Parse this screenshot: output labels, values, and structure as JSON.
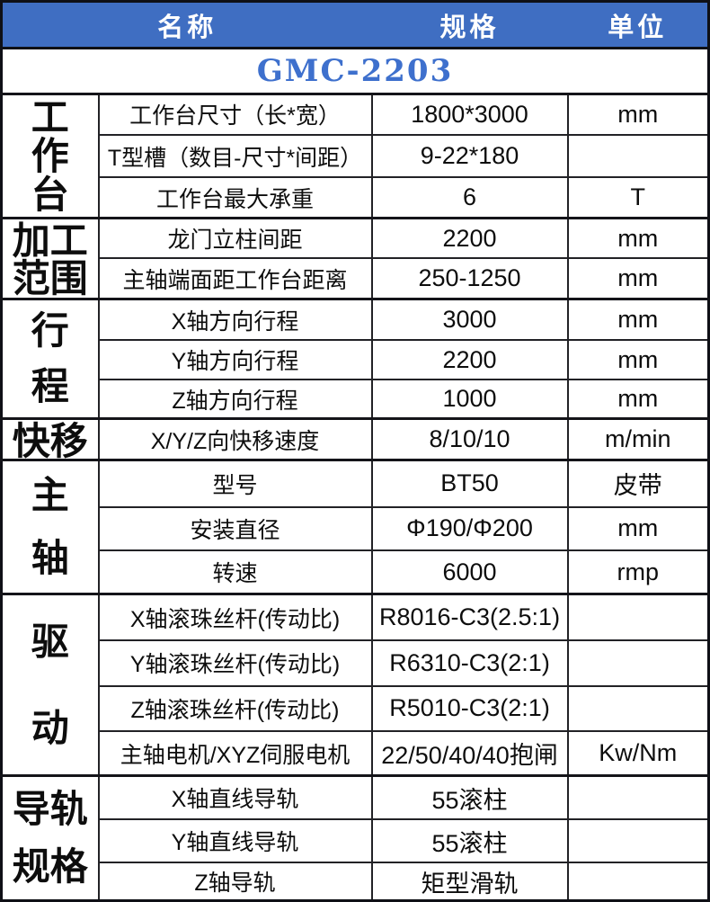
{
  "header": {
    "col_name": "名称",
    "col_spec": "规格",
    "col_unit": "单位"
  },
  "model_title": "GMC-2203",
  "colors": {
    "header_bg": "#3f6ec2",
    "header_text": "#ffffff",
    "title_text": "#3e70cd",
    "border_dark": "#141419",
    "body_text": "#0d0d0d"
  },
  "groups": [
    {
      "id": "worktable",
      "label": "工作台",
      "label_lines": [
        "工",
        "作",
        "台"
      ],
      "rows": [
        {
          "name": "工作台尺寸（长*宽）",
          "spec": "1800*3000",
          "unit": "mm"
        },
        {
          "name": "T型槽（数目-尺寸*间距）",
          "spec": "9-22*180",
          "unit": ""
        },
        {
          "name": "工作台最大承重",
          "spec": "6",
          "unit": "T"
        }
      ]
    },
    {
      "id": "machining-range",
      "label": "加工范围",
      "label_lines": [
        "加工",
        "范围"
      ],
      "rows": [
        {
          "name": "龙门立柱间距",
          "spec": "2200",
          "unit": "mm"
        },
        {
          "name": "主轴端面距工作台距离",
          "spec": "250-1250",
          "unit": "mm"
        }
      ]
    },
    {
      "id": "travel",
      "label": "行程",
      "label_lines": [
        "行",
        "程"
      ],
      "rows": [
        {
          "name": "X轴方向行程",
          "spec": "3000",
          "unit": "mm"
        },
        {
          "name": "Y轴方向行程",
          "spec": "2200",
          "unit": "mm"
        },
        {
          "name": "Z轴方向行程",
          "spec": "1000",
          "unit": "mm"
        }
      ]
    },
    {
      "id": "rapid-traverse",
      "label": "快移",
      "label_lines": [
        "快移"
      ],
      "rows": [
        {
          "name": "X/Y/Z向快移速度",
          "spec": "8/10/10",
          "unit": "m/min"
        }
      ]
    },
    {
      "id": "spindle",
      "label": "主轴",
      "label_lines": [
        "主",
        "轴"
      ],
      "rows": [
        {
          "name": "型号",
          "spec": "BT50",
          "unit": "皮带"
        },
        {
          "name": "安装直径",
          "spec": "Φ190/Φ200",
          "unit": "mm"
        },
        {
          "name": "转速",
          "spec": "6000",
          "unit": "rmp"
        }
      ]
    },
    {
      "id": "drive",
      "label": "驱动",
      "label_lines": [
        "驱",
        "动"
      ],
      "rows": [
        {
          "name": "X轴滚珠丝杆(传动比)",
          "spec": "R8016-C3(2.5:1)",
          "unit": ""
        },
        {
          "name": "Y轴滚珠丝杆(传动比)",
          "spec": "R6310-C3(2:1)",
          "unit": ""
        },
        {
          "name": "Z轴滚珠丝杆(传动比)",
          "spec": "R5010-C3(2:1)",
          "unit": ""
        },
        {
          "name": "主轴电机/XYZ伺服电机",
          "spec": "22/50/40/40抱闸",
          "unit": "Kw/Nm"
        }
      ]
    },
    {
      "id": "guideway-spec",
      "label": "导轨规格",
      "label_lines": [
        "导轨",
        "规格"
      ],
      "rows": [
        {
          "name": "X轴直线导轨",
          "spec": "55滚柱",
          "unit": ""
        },
        {
          "name": "Y轴直线导轨",
          "spec": "55滚柱",
          "unit": ""
        },
        {
          "name": "Z轴导轨",
          "spec": "矩型滑轨",
          "unit": ""
        }
      ]
    }
  ]
}
